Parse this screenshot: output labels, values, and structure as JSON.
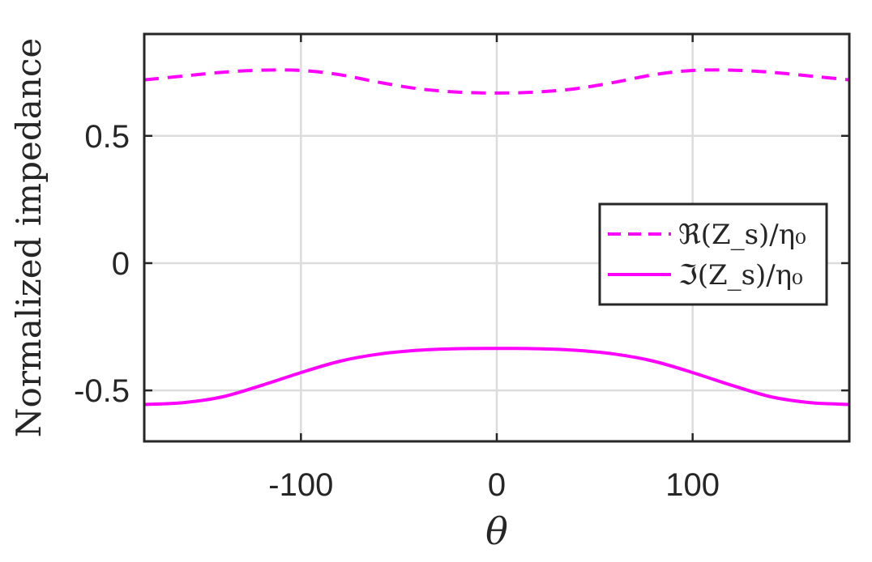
{
  "chart_data": {
    "type": "line",
    "xlabel": "θ",
    "ylabel": "Normalized impedance",
    "xlim": [
      -180,
      180
    ],
    "ylim": [
      -0.7,
      0.9
    ],
    "xticks": [
      -100,
      0,
      100
    ],
    "xtick_labels": [
      "-100",
      "0",
      "100"
    ],
    "yticks": [
      -0.5,
      0,
      0.5
    ],
    "ytick_labels": [
      "-0.5",
      "0",
      "0.5"
    ],
    "grid": true,
    "legend_position": "right",
    "x": [
      -180,
      -160,
      -140,
      -120,
      -100,
      -80,
      -60,
      -40,
      -20,
      0,
      20,
      40,
      60,
      80,
      100,
      120,
      140,
      160,
      180
    ],
    "series": [
      {
        "name": "ℜ(Z_s)/η₀",
        "style": "dashed",
        "color": "#ff00ff",
        "values": [
          0.72,
          0.735,
          0.75,
          0.758,
          0.757,
          0.74,
          0.71,
          0.685,
          0.672,
          0.668,
          0.672,
          0.685,
          0.71,
          0.74,
          0.757,
          0.758,
          0.75,
          0.735,
          0.72
        ]
      },
      {
        "name": "ℑ(Z_s)/η₀",
        "style": "solid",
        "color": "#ff00ff",
        "values": [
          -0.555,
          -0.548,
          -0.525,
          -0.48,
          -0.43,
          -0.385,
          -0.357,
          -0.342,
          -0.336,
          -0.335,
          -0.336,
          -0.342,
          -0.357,
          -0.385,
          -0.43,
          -0.48,
          -0.525,
          -0.548,
          -0.555
        ]
      }
    ]
  }
}
